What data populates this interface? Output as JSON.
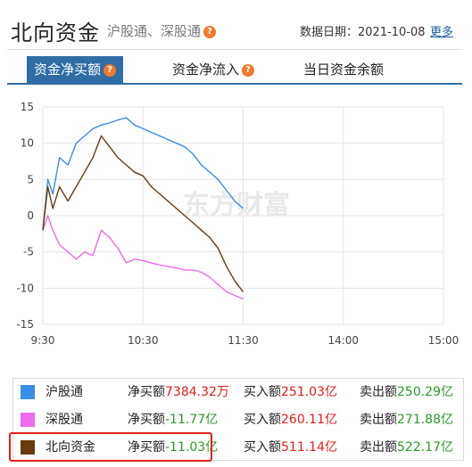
{
  "header": {
    "title": "北向资金",
    "subtitle": "沪股通、深股通",
    "date_label": "数据日期：2021-10-08",
    "more_label": "更多"
  },
  "tabs": [
    {
      "label": "资金净买额",
      "active": true
    },
    {
      "label": "资金净流入",
      "active": false
    },
    {
      "label": "当日资金余额",
      "active": false
    }
  ],
  "watermark": "东方财富",
  "colors": {
    "accent": "#2f6da4",
    "hgt": "#3a8ee6",
    "sgt": "#ee6bee",
    "north": "#6b3a0e",
    "positive": "#e0201a",
    "negative": "#2a9a2a",
    "help_icon": "#f07a2d"
  },
  "chart_data": {
    "type": "line",
    "x_ticks": [
      "9:30",
      "10:30",
      "11:30",
      "14:00",
      "15:00"
    ],
    "y_ticks": [
      15,
      10,
      5,
      0,
      -5,
      -10,
      -15
    ],
    "ylim": [
      -15,
      15
    ],
    "grid": true,
    "series": [
      {
        "name": "沪股通",
        "color": "#3a8ee6",
        "x": [
          "9:30",
          "9:33",
          "9:36",
          "9:40",
          "9:45",
          "9:50",
          "9:55",
          "10:00",
          "10:05",
          "10:10",
          "10:15",
          "10:20",
          "10:25",
          "10:30",
          "10:35",
          "10:40",
          "10:45",
          "10:50",
          "10:55",
          "11:00",
          "11:05",
          "11:10",
          "11:15",
          "11:20",
          "11:25",
          "11:30"
        ],
        "values": [
          -2,
          5,
          3,
          8,
          7,
          10,
          11,
          12,
          12.5,
          12.8,
          13.2,
          13.5,
          12.5,
          12,
          11.5,
          11,
          10.5,
          10,
          9.5,
          8.5,
          7,
          6,
          5,
          3.5,
          2,
          1
        ]
      },
      {
        "name": "深股通",
        "color": "#ee6bee",
        "x": [
          "9:30",
          "9:33",
          "9:36",
          "9:40",
          "9:45",
          "9:50",
          "9:55",
          "10:00",
          "10:05",
          "10:10",
          "10:15",
          "10:20",
          "10:25",
          "10:30",
          "10:35",
          "10:40",
          "10:45",
          "10:50",
          "10:55",
          "11:00",
          "11:05",
          "11:10",
          "11:15",
          "11:20",
          "11:25",
          "11:30"
        ],
        "values": [
          -2,
          0,
          -2,
          -4,
          -5,
          -6,
          -5,
          -5.5,
          -2,
          -3,
          -4.5,
          -6.5,
          -6,
          -6.2,
          -6.5,
          -6.8,
          -7,
          -7.2,
          -7.5,
          -7.5,
          -7.8,
          -8.5,
          -9.5,
          -10.5,
          -11,
          -11.5
        ]
      },
      {
        "name": "北向资金",
        "color": "#6b3a0e",
        "x": [
          "9:30",
          "9:33",
          "9:36",
          "9:40",
          "9:45",
          "9:50",
          "9:55",
          "10:00",
          "10:05",
          "10:10",
          "10:15",
          "10:20",
          "10:25",
          "10:30",
          "10:35",
          "10:40",
          "10:45",
          "10:50",
          "10:55",
          "11:00",
          "11:05",
          "11:10",
          "11:15",
          "11:20",
          "11:25",
          "11:30"
        ],
        "values": [
          -2,
          4,
          1,
          4,
          2,
          4,
          6,
          8,
          11,
          9.5,
          8,
          7,
          6,
          5.5,
          4,
          3,
          2,
          1,
          0,
          -1,
          -2,
          -3,
          -4.5,
          -7,
          -9,
          -10.5
        ]
      }
    ]
  },
  "legend": [
    {
      "name": "沪股通",
      "color": "#3a8ee6",
      "net_label": "净买额",
      "net_value": "7384.32万",
      "net_sign": "positive",
      "buy_label": "买入额",
      "buy_value": "251.03亿",
      "sell_label": "卖出额",
      "sell_value": "250.29亿"
    },
    {
      "name": "深股通",
      "color": "#ee6bee",
      "net_label": "净买额",
      "net_value": "-11.77亿",
      "net_sign": "negative",
      "buy_label": "买入额",
      "buy_value": "260.11亿",
      "sell_label": "卖出额",
      "sell_value": "271.88亿"
    },
    {
      "name": "北向资金",
      "color": "#6b3a0e",
      "net_label": "净买额",
      "net_value": "-11.03亿",
      "net_sign": "negative",
      "buy_label": "买入额",
      "buy_value": "511.14亿",
      "sell_label": "卖出额",
      "sell_value": "522.17亿"
    }
  ]
}
